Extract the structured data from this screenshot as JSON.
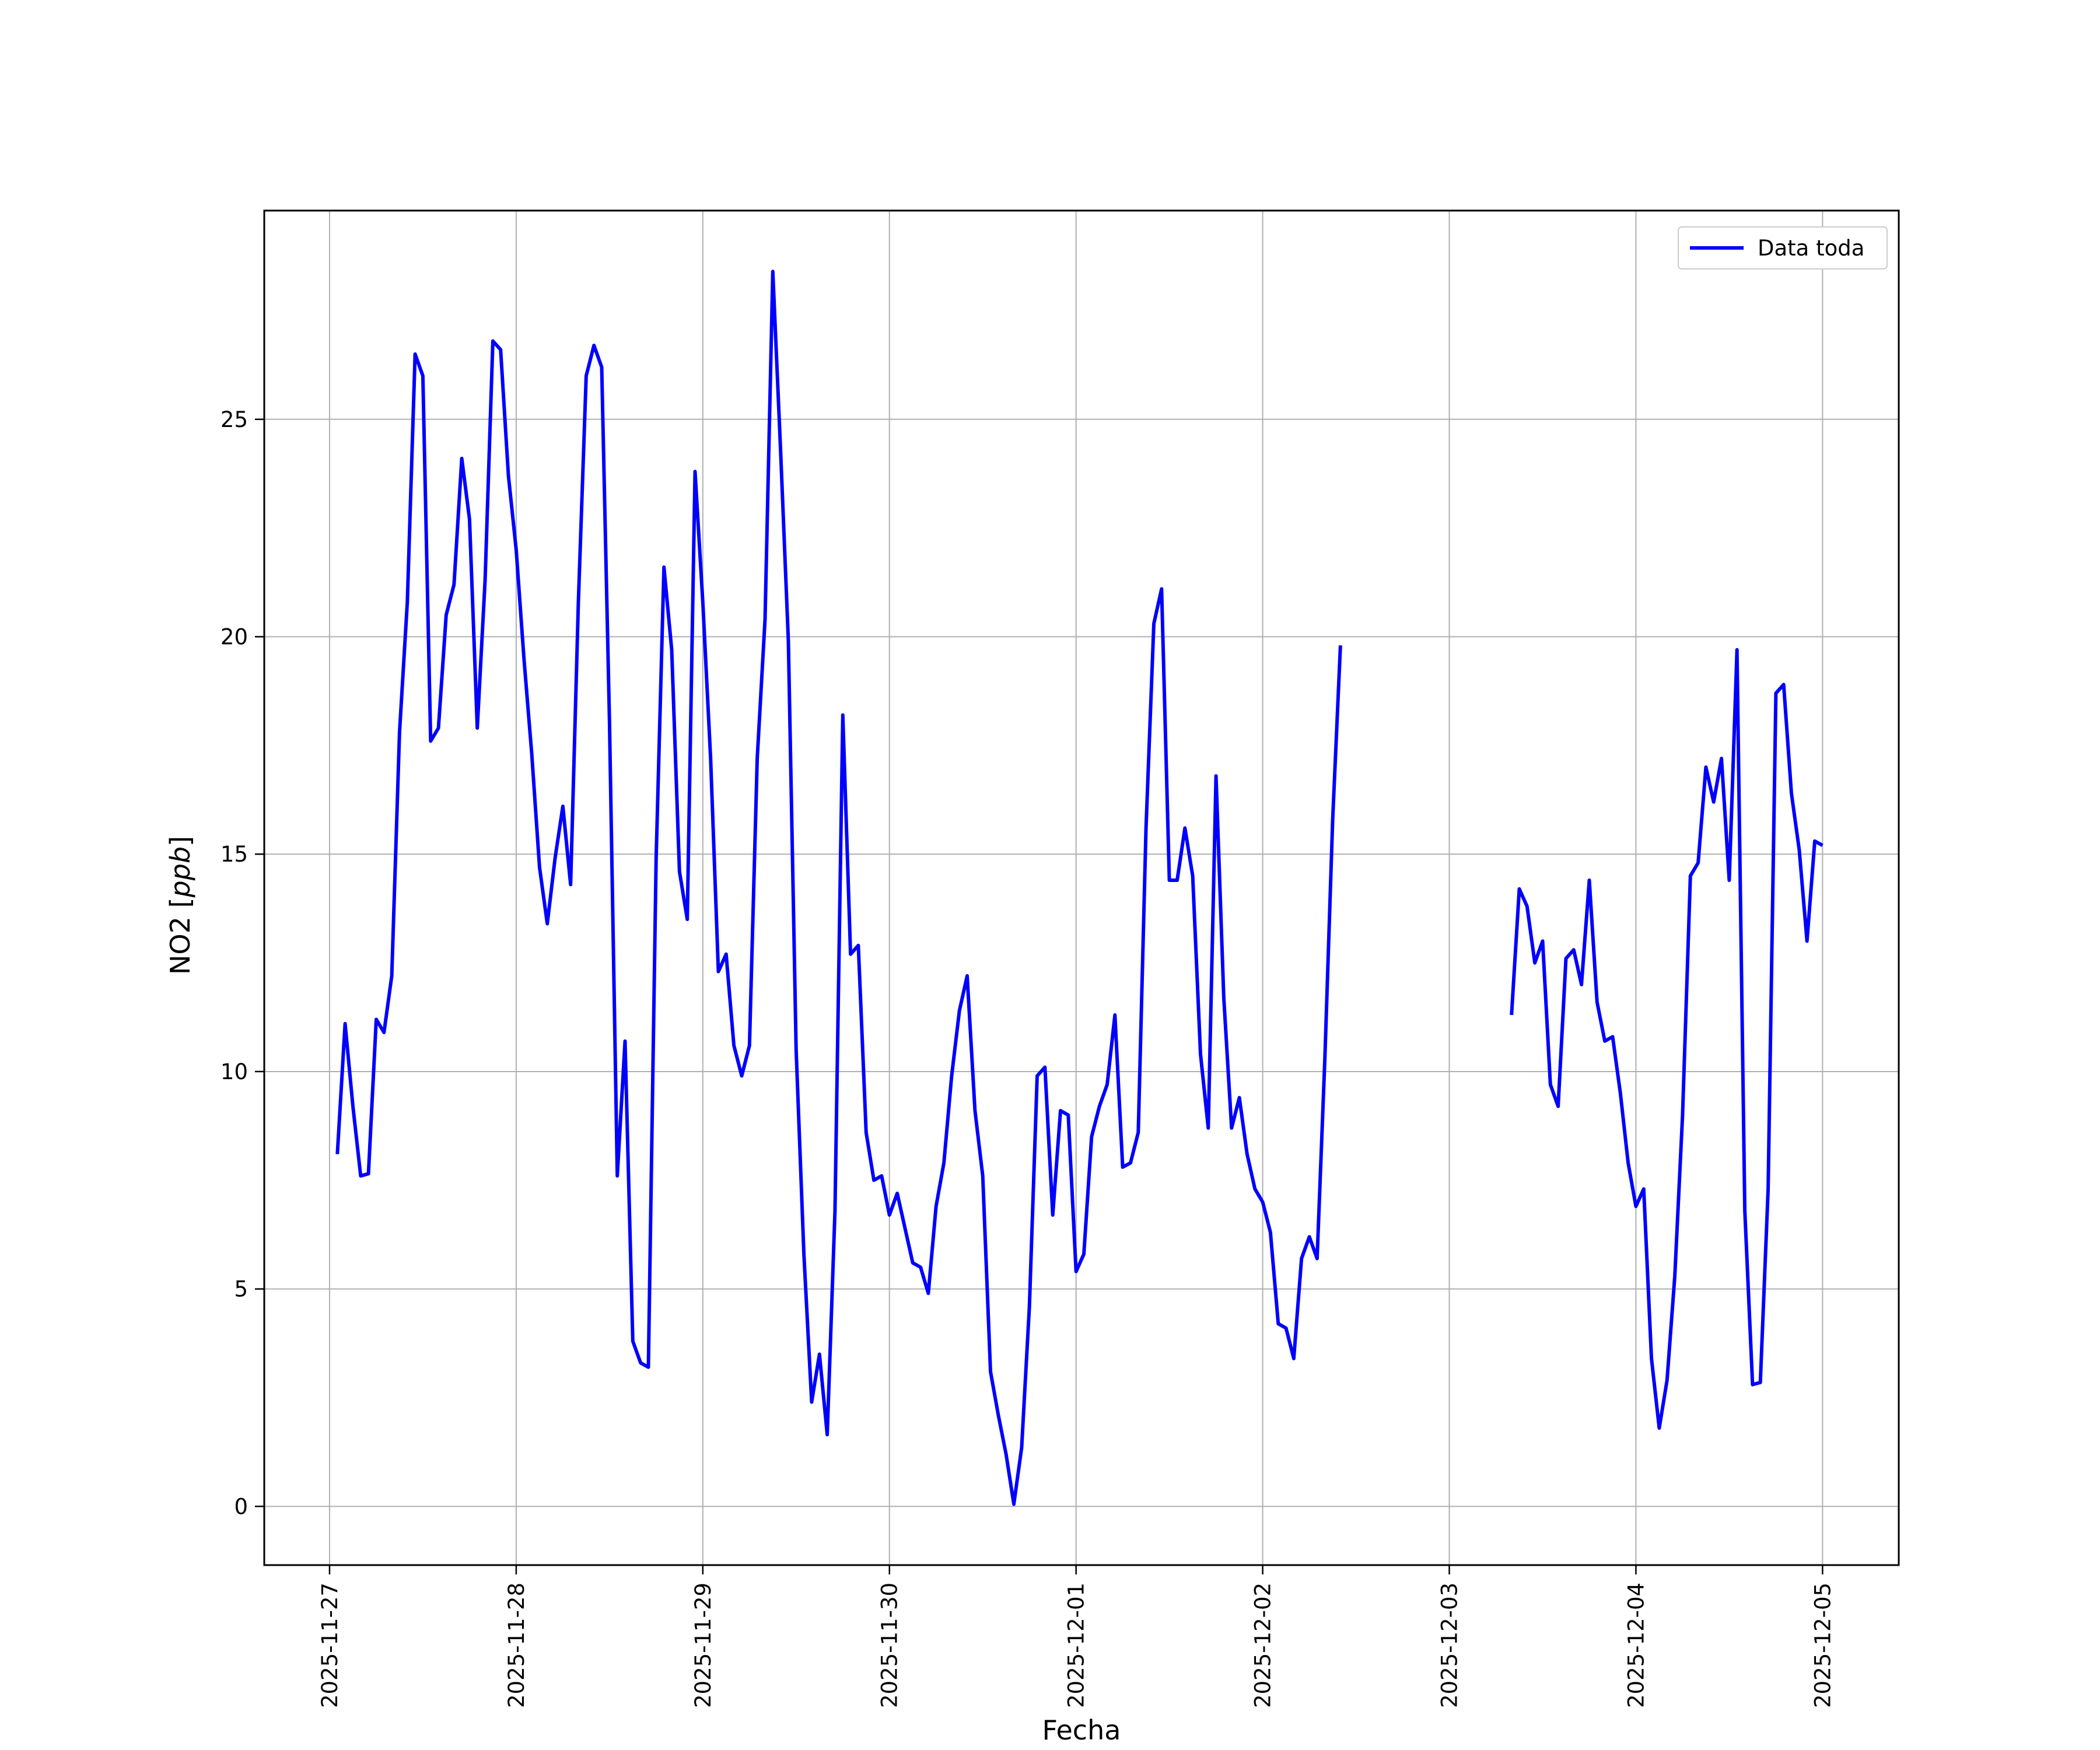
{
  "chart_data": {
    "type": "line",
    "title": "",
    "xlabel": "Fecha",
    "ylabel": "NO2 [ppb]",
    "ylabel_parts": {
      "name": "NO2",
      "unit": "ppb"
    },
    "grid": true,
    "legend": {
      "placement": "top-right",
      "entries": [
        "Data toda"
      ]
    },
    "xlim": [
      "2025-11-26T15:36",
      "2025-12-05T09:48"
    ],
    "ylim": [
      -1.35,
      29.8
    ],
    "x_ticks": [
      "2025-11-27",
      "2025-11-28",
      "2025-11-29",
      "2025-11-30",
      "2025-12-01",
      "2025-12-02",
      "2025-12-03",
      "2025-12-04",
      "2025-12-05"
    ],
    "y_ticks": [
      0,
      5,
      10,
      15,
      20,
      25
    ],
    "series": [
      {
        "name": "Data toda",
        "color": "#0000ff",
        "points": [
          [
            "2025-11-27T01:00",
            8.1
          ],
          [
            "2025-11-27T02:00",
            11.1
          ],
          [
            "2025-11-27T03:00",
            9.2
          ],
          [
            "2025-11-27T04:00",
            7.6
          ],
          [
            "2025-11-27T05:00",
            7.65
          ],
          [
            "2025-11-27T06:00",
            11.2
          ],
          [
            "2025-11-27T07:00",
            10.9
          ],
          [
            "2025-11-27T08:00",
            12.2
          ],
          [
            "2025-11-27T09:00",
            17.8
          ],
          [
            "2025-11-27T10:00",
            20.8
          ],
          [
            "2025-11-27T11:00",
            26.5
          ],
          [
            "2025-11-27T12:00",
            26.0
          ],
          [
            "2025-11-27T13:00",
            17.6
          ],
          [
            "2025-11-27T14:00",
            17.9
          ],
          [
            "2025-11-27T15:00",
            20.5
          ],
          [
            "2025-11-27T16:00",
            21.2
          ],
          [
            "2025-11-27T17:00",
            24.1
          ],
          [
            "2025-11-27T18:00",
            22.7
          ],
          [
            "2025-11-27T19:00",
            17.9
          ],
          [
            "2025-11-27T20:00",
            21.3
          ],
          [
            "2025-11-27T21:00",
            26.8
          ],
          [
            "2025-11-27T22:00",
            26.6
          ],
          [
            "2025-11-27T23:00",
            23.7
          ],
          [
            "2025-11-28T00:00",
            22.0
          ],
          [
            "2025-11-28T01:00",
            19.5
          ],
          [
            "2025-11-28T02:00",
            17.3
          ],
          [
            "2025-11-28T03:00",
            14.7
          ],
          [
            "2025-11-28T04:00",
            13.4
          ],
          [
            "2025-11-28T05:00",
            14.9
          ],
          [
            "2025-11-28T06:00",
            16.1
          ],
          [
            "2025-11-28T07:00",
            14.3
          ],
          [
            "2025-11-28T08:00",
            20.8
          ],
          [
            "2025-11-28T09:00",
            26.0
          ],
          [
            "2025-11-28T10:00",
            26.7
          ],
          [
            "2025-11-28T11:00",
            26.2
          ],
          [
            "2025-11-28T12:00",
            18.0
          ],
          [
            "2025-11-28T13:00",
            7.6
          ],
          [
            "2025-11-28T14:00",
            10.7
          ],
          [
            "2025-11-28T15:00",
            3.8
          ],
          [
            "2025-11-28T16:00",
            3.3
          ],
          [
            "2025-11-28T17:00",
            3.2
          ],
          [
            "2025-11-28T18:00",
            14.9
          ],
          [
            "2025-11-28T19:00",
            21.6
          ],
          [
            "2025-11-28T20:00",
            19.7
          ],
          [
            "2025-11-28T21:00",
            14.6
          ],
          [
            "2025-11-28T22:00",
            13.5
          ],
          [
            "2025-11-28T23:00",
            23.8
          ],
          [
            "2025-11-29T00:00",
            20.8
          ],
          [
            "2025-11-29T01:00",
            17.2
          ],
          [
            "2025-11-29T02:00",
            12.3
          ],
          [
            "2025-11-29T03:00",
            12.7
          ],
          [
            "2025-11-29T04:00",
            10.6
          ],
          [
            "2025-11-29T05:00",
            9.9
          ],
          [
            "2025-11-29T06:00",
            10.6
          ],
          [
            "2025-11-29T07:00",
            17.2
          ],
          [
            "2025-11-29T08:00",
            20.4
          ],
          [
            "2025-11-29T09:00",
            28.4
          ],
          [
            "2025-11-29T10:00",
            24.3
          ],
          [
            "2025-11-29T11:00",
            19.9
          ],
          [
            "2025-11-29T12:00",
            10.5
          ],
          [
            "2025-11-29T13:00",
            5.8
          ],
          [
            "2025-11-29T14:00",
            2.4
          ],
          [
            "2025-11-29T15:00",
            3.5
          ],
          [
            "2025-11-29T16:00",
            1.65
          ],
          [
            "2025-11-29T17:00",
            6.8
          ],
          [
            "2025-11-29T18:00",
            18.2
          ],
          [
            "2025-11-29T19:00",
            12.7
          ],
          [
            "2025-11-29T20:00",
            12.9
          ],
          [
            "2025-11-29T21:00",
            8.6
          ],
          [
            "2025-11-29T22:00",
            7.5
          ],
          [
            "2025-11-29T23:00",
            7.6
          ],
          [
            "2025-11-30T00:00",
            6.7
          ],
          [
            "2025-11-30T01:00",
            7.2
          ],
          [
            "2025-11-30T02:00",
            6.4
          ],
          [
            "2025-11-30T03:00",
            5.6
          ],
          [
            "2025-11-30T04:00",
            5.5
          ],
          [
            "2025-11-30T05:00",
            4.9
          ],
          [
            "2025-11-30T06:00",
            6.9
          ],
          [
            "2025-11-30T07:00",
            7.9
          ],
          [
            "2025-11-30T08:00",
            9.9
          ],
          [
            "2025-11-30T09:00",
            11.4
          ],
          [
            "2025-11-30T10:00",
            12.2
          ],
          [
            "2025-11-30T11:00",
            9.1
          ],
          [
            "2025-11-30T12:00",
            7.6
          ],
          [
            "2025-11-30T13:00",
            3.1
          ],
          [
            "2025-11-30T14:00",
            2.1
          ],
          [
            "2025-11-30T15:00",
            1.2
          ],
          [
            "2025-11-30T16:00",
            0.05
          ],
          [
            "2025-11-30T17:00",
            1.35
          ],
          [
            "2025-11-30T18:00",
            4.6
          ],
          [
            "2025-11-30T19:00",
            9.9
          ],
          [
            "2025-11-30T20:00",
            10.1
          ],
          [
            "2025-11-30T21:00",
            6.7
          ],
          [
            "2025-11-30T22:00",
            9.1
          ],
          [
            "2025-11-30T23:00",
            9.0
          ],
          [
            "2025-12-01T00:00",
            5.4
          ],
          [
            "2025-12-01T01:00",
            5.8
          ],
          [
            "2025-12-01T02:00",
            8.5
          ],
          [
            "2025-12-01T03:00",
            9.2
          ],
          [
            "2025-12-01T04:00",
            9.7
          ],
          [
            "2025-12-01T05:00",
            11.3
          ],
          [
            "2025-12-01T06:00",
            7.8
          ],
          [
            "2025-12-01T07:00",
            7.9
          ],
          [
            "2025-12-01T08:00",
            8.6
          ],
          [
            "2025-12-01T09:00",
            15.6
          ],
          [
            "2025-12-01T10:00",
            20.3
          ],
          [
            "2025-12-01T11:00",
            21.1
          ],
          [
            "2025-12-01T12:00",
            14.4
          ],
          [
            "2025-12-01T13:00",
            14.4
          ],
          [
            "2025-12-01T14:00",
            15.6
          ],
          [
            "2025-12-01T15:00",
            14.5
          ],
          [
            "2025-12-01T16:00",
            10.4
          ],
          [
            "2025-12-01T17:00",
            8.7
          ],
          [
            "2025-12-01T18:00",
            16.8
          ],
          [
            "2025-12-01T19:00",
            11.7
          ],
          [
            "2025-12-01T20:00",
            8.7
          ],
          [
            "2025-12-01T21:00",
            9.4
          ],
          [
            "2025-12-01T22:00",
            8.1
          ],
          [
            "2025-12-01T23:00",
            7.3
          ],
          [
            "2025-12-02T00:00",
            7.0
          ],
          [
            "2025-12-02T01:00",
            6.3
          ],
          [
            "2025-12-02T02:00",
            4.2
          ],
          [
            "2025-12-02T03:00",
            4.1
          ],
          [
            "2025-12-02T04:00",
            3.4
          ],
          [
            "2025-12-02T05:00",
            5.7
          ],
          [
            "2025-12-02T06:00",
            6.2
          ],
          [
            "2025-12-02T07:00",
            5.7
          ],
          [
            "2025-12-02T08:00",
            10.3
          ],
          [
            "2025-12-02T09:00",
            15.8
          ],
          [
            "2025-12-02T10:00",
            19.8
          ],
          null,
          [
            "2025-12-03T08:00",
            11.3
          ],
          [
            "2025-12-03T09:00",
            14.2
          ],
          [
            "2025-12-03T10:00",
            13.8
          ],
          [
            "2025-12-03T11:00",
            12.5
          ],
          [
            "2025-12-03T12:00",
            13.0
          ],
          [
            "2025-12-03T13:00",
            9.7
          ],
          [
            "2025-12-03T14:00",
            9.2
          ],
          [
            "2025-12-03T15:00",
            12.6
          ],
          [
            "2025-12-03T16:00",
            12.8
          ],
          [
            "2025-12-03T17:00",
            12.0
          ],
          [
            "2025-12-03T18:00",
            14.4
          ],
          [
            "2025-12-03T19:00",
            11.6
          ],
          [
            "2025-12-03T20:00",
            10.7
          ],
          [
            "2025-12-03T21:00",
            10.8
          ],
          [
            "2025-12-03T22:00",
            9.5
          ],
          [
            "2025-12-03T23:00",
            7.9
          ],
          [
            "2025-12-04T00:00",
            6.9
          ],
          [
            "2025-12-04T01:00",
            7.3
          ],
          [
            "2025-12-04T02:00",
            3.4
          ],
          [
            "2025-12-04T03:00",
            1.8
          ],
          [
            "2025-12-04T04:00",
            2.9
          ],
          [
            "2025-12-04T05:00",
            5.3
          ],
          [
            "2025-12-04T06:00",
            9.0
          ],
          [
            "2025-12-04T07:00",
            14.5
          ],
          [
            "2025-12-04T08:00",
            14.8
          ],
          [
            "2025-12-04T09:00",
            17.0
          ],
          [
            "2025-12-04T10:00",
            16.2
          ],
          [
            "2025-12-04T11:00",
            17.2
          ],
          [
            "2025-12-04T12:00",
            14.4
          ],
          [
            "2025-12-04T13:00",
            19.7
          ],
          [
            "2025-12-04T14:00",
            6.8
          ],
          [
            "2025-12-04T15:00",
            2.8
          ],
          [
            "2025-12-04T16:00",
            2.85
          ],
          [
            "2025-12-04T17:00",
            7.3
          ],
          [
            "2025-12-04T18:00",
            18.7
          ],
          [
            "2025-12-04T19:00",
            18.9
          ],
          [
            "2025-12-04T20:00",
            16.4
          ],
          [
            "2025-12-04T21:00",
            15.1
          ],
          [
            "2025-12-04T22:00",
            13.0
          ],
          [
            "2025-12-04T23:00",
            15.3
          ],
          [
            "2025-12-05T00:00",
            15.2
          ]
        ]
      }
    ]
  }
}
